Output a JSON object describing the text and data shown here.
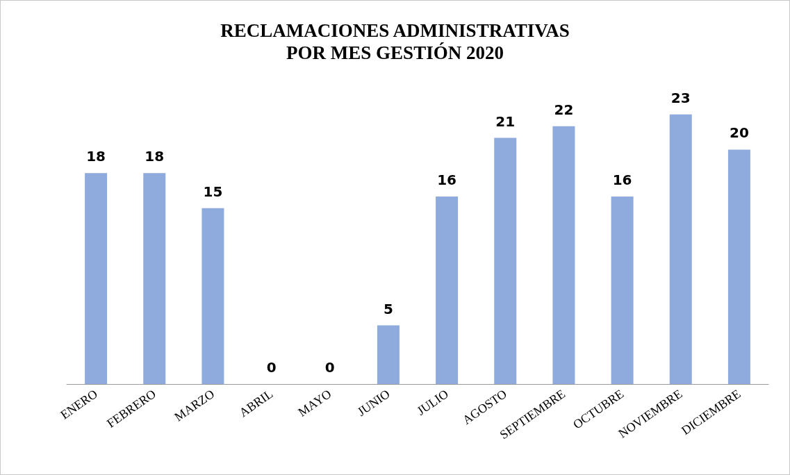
{
  "chart_data": {
    "type": "bar",
    "title": "RECLAMACIONES ADMINISTRATIVAS\nPOR MES GESTIÓN 2020",
    "categories": [
      "ENERO",
      "FEBRERO",
      "MARZO",
      "ABRIL",
      "MAYO",
      "JUNIO",
      "JULIO",
      "AGOSTO",
      "SEPTIEMBRE",
      "OCTUBRE",
      "NOVIEMBRE",
      "DICIEMBRE"
    ],
    "values": [
      18,
      18,
      15,
      0,
      0,
      5,
      16,
      21,
      22,
      16,
      23,
      20
    ],
    "color": "#8faadc",
    "data_labels": true,
    "grid": false
  }
}
